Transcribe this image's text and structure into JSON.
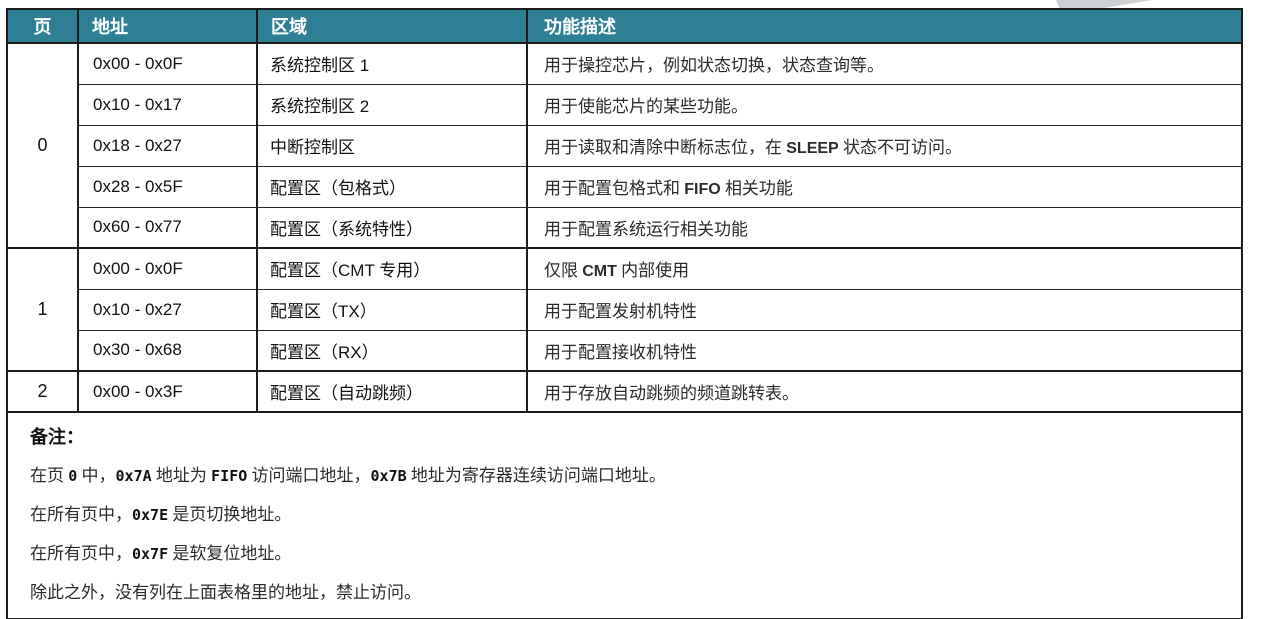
{
  "colors": {
    "header_bg": "#2E7F96",
    "header_text": "#FFFFFF",
    "border": "#1C1C1C",
    "desc_text": "#2B2B2B",
    "watermark": "#CDD0D3"
  },
  "table": {
    "headers": [
      "页",
      "地址",
      "区域",
      "功能描述"
    ],
    "groups": [
      {
        "page": "0",
        "rows": [
          {
            "addr": "0x00 - 0x0F",
            "region": "系统控制区 1",
            "desc": "用于操控芯片，例如状态切换，状态查询等。"
          },
          {
            "addr": "0x10 - 0x17",
            "region": "系统控制区 2",
            "desc": "用于使能芯片的某些功能。"
          },
          {
            "addr": "0x18 - 0x27",
            "region": "中断控制区",
            "desc": "用于读取和清除中断标志位，在 SLEEP 状态不可访问。"
          },
          {
            "addr": "0x28 - 0x5F",
            "region": "配置区（包格式）",
            "desc": "用于配置包格式和 FIFO 相关功能"
          },
          {
            "addr": "0x60 - 0x77",
            "region": "配置区（系统特性）",
            "desc": "用于配置系统运行相关功能"
          }
        ]
      },
      {
        "page": "1",
        "rows": [
          {
            "addr": "0x00 - 0x0F",
            "region": "配置区（CMT 专用）",
            "desc": "仅限 CMT 内部使用"
          },
          {
            "addr": "0x10 - 0x27",
            "region": "配置区（TX）",
            "desc": "用于配置发射机特性"
          },
          {
            "addr": "0x30 - 0x68",
            "region": "配置区（RX）",
            "desc": "用于配置接收机特性"
          }
        ]
      },
      {
        "page": "2",
        "rows": [
          {
            "addr": "0x00 - 0x3F",
            "region": "配置区（自动跳频）",
            "desc": "用于存放自动跳频的频道跳转表。"
          }
        ]
      }
    ]
  },
  "notes": {
    "title": "备注：",
    "lines": [
      "在页 0 中，0x7A 地址为 FIFO 访问端口地址，0x7B 地址为寄存器连续访问端口地址。",
      "在所有页中，0x7E 是页切换地址。",
      "在所有页中，0x7F 是软复位地址。",
      "除此之外，没有列在上面表格里的地址，禁止访问。"
    ]
  }
}
